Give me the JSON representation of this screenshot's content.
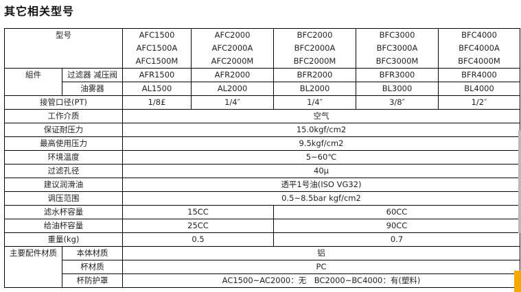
{
  "title": "其它相关型号",
  "header": {
    "model_label": "型号",
    "models": [
      [
        "AFC1500",
        "AFC1500A",
        "AFC1500M"
      ],
      [
        "AFC2000",
        "AFC2000A",
        "AFC2000M"
      ],
      [
        "BFC2000",
        "BFC2000A",
        "BFC2000M"
      ],
      [
        "BFC3000",
        "BFC3000A",
        "BFC3000M"
      ],
      [
        "BFC4000",
        "BFC4000A",
        "BFC4000M"
      ]
    ]
  },
  "components": {
    "label": "組件",
    "filter_regulator": {
      "label": "过滤器 减压阀",
      "values": [
        "AFR1500",
        "AFR2000",
        "BFR2000",
        "BFR3000",
        "BFR4000"
      ]
    },
    "lubricator": {
      "label": "油雾器",
      "values": [
        "AL1500",
        "AL2000",
        "BL2000",
        "BL3000",
        "BL4000"
      ]
    }
  },
  "port_size": {
    "label": "接管口径(PT)",
    "values": [
      "1/8£",
      "1/4″",
      "1/4″",
      "3/8″",
      "1/2″"
    ]
  },
  "specs": [
    {
      "label": "工作介质",
      "value": "空气"
    },
    {
      "label": "保证耐压力",
      "value": "15.0kgf/cm2"
    },
    {
      "label": "最高使用压力",
      "value": "9.5kgf/cm2"
    },
    {
      "label": "环境温度",
      "value": "5~60℃"
    },
    {
      "label": "过滤孔径",
      "value": "40μ"
    },
    {
      "label": "建议润滑油",
      "value": "透平1号油(ISO VG32)"
    },
    {
      "label": "调压范围",
      "value": "0.5~8.5bar kgf/cm2"
    }
  ],
  "split_specs": [
    {
      "label": "滤水杯容量",
      "a": "15CC",
      "b": "60CC"
    },
    {
      "label": "给油杯容量",
      "a": "25CC",
      "b": "90CC"
    },
    {
      "label": "重量(kg)",
      "a": "0.5",
      "b": "0.7"
    }
  ],
  "materials": {
    "label": "主要配件材质",
    "rows": [
      {
        "label": "本体材质",
        "value": "铝"
      },
      {
        "label": "杯材质",
        "value": "PC"
      },
      {
        "label": "杯防护罩",
        "value": "AC1500~AC2000：无　BC2000~BC4000：有(塑料)"
      }
    ]
  }
}
